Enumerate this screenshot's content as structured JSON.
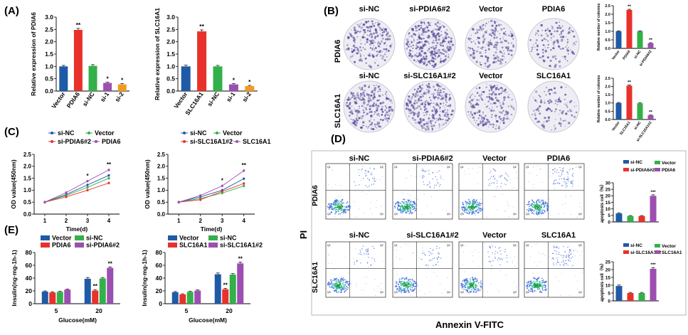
{
  "figure": {
    "panels": {
      "A": "(A)",
      "B": "(B)",
      "C": "(C)",
      "D": "(D)",
      "E": "(E)"
    },
    "colony_labels": {
      "top": [
        "si-NC",
        "si-PDIA6#2",
        "Vector",
        "PDIA6"
      ],
      "bottom": [
        "si-NC",
        "si-SLC16A1#2",
        "Vector",
        "SLC16A1"
      ],
      "row_top": "PDIA6",
      "row_bottom": "SLC16A1"
    },
    "flow_labels": {
      "top": [
        "si-NC",
        "si-PDIA6#2",
        "Vector",
        "PDIA6"
      ],
      "bottom": [
        "si-NC",
        "si-SLC16A1#2",
        "Vector",
        "SLC16A1"
      ],
      "row_top": "PDIA6",
      "row_bottom": "SLC16A1",
      "y_axis": "PI",
      "x_axis": "Annexin V-FITC",
      "quadrants": [
        "Q1",
        "Q2",
        "Q3",
        "Q4"
      ]
    }
  },
  "colors": {
    "blue": "#1f5aa6",
    "red": "#e8312a",
    "green": "#33b04a",
    "purple": "#9b4fb0",
    "orange": "#f39a1e",
    "plate_ink": "#5a4f9e"
  },
  "chart_data": [
    {
      "id": "A1",
      "type": "bar",
      "ylabel": "Relative expression of PDIA6",
      "categories": [
        "Vector",
        "PDIA6",
        "si-NC",
        "si-1",
        "si-2"
      ],
      "values": [
        1.0,
        2.48,
        1.02,
        0.33,
        0.27
      ],
      "errors": [
        0.04,
        0.06,
        0.05,
        0.03,
        0.03
      ],
      "colors": [
        "blue",
        "red",
        "green",
        "purple",
        "orange"
      ],
      "sig": [
        "",
        "**",
        "",
        "*",
        "*"
      ],
      "ylim": [
        0,
        3.0
      ],
      "yticks": [
        "0.0",
        "0.5",
        "1.0",
        "1.5",
        "2.0",
        "2.5",
        "3.0"
      ]
    },
    {
      "id": "A2",
      "type": "bar",
      "ylabel": "Relative expression of SLC16A1",
      "categories": [
        "Vector",
        "SLC16A1",
        "si-NC",
        "si-1",
        "si-2"
      ],
      "values": [
        1.0,
        2.42,
        1.0,
        0.27,
        0.2
      ],
      "errors": [
        0.05,
        0.06,
        0.04,
        0.03,
        0.03
      ],
      "colors": [
        "blue",
        "red",
        "green",
        "purple",
        "orange"
      ],
      "sig": [
        "",
        "**",
        "",
        "*",
        "*"
      ],
      "ylim": [
        0,
        3.0
      ],
      "yticks": [
        "0.0",
        "0.5",
        "1.0",
        "1.5",
        "2.0",
        "2.5",
        "3.0"
      ]
    },
    {
      "id": "B1",
      "type": "bar",
      "ylabel": "Relative number of colonies",
      "categories": [
        "Vector",
        "PDIA6",
        "si-NC",
        "si-PDIA6#2"
      ],
      "values": [
        1.0,
        2.25,
        1.0,
        0.3
      ],
      "errors": [
        0.03,
        0.04,
        0.03,
        0.03
      ],
      "colors": [
        "blue",
        "red",
        "green",
        "purple"
      ],
      "sig": [
        "",
        "**",
        "",
        "**"
      ],
      "ylim": [
        0,
        2.5
      ],
      "yticks": [
        "0.0",
        "0.5",
        "1.0",
        "1.5",
        "2.0",
        "2.5"
      ]
    },
    {
      "id": "B2",
      "type": "bar",
      "ylabel": "Relative number of colonies",
      "categories": [
        "Vector",
        "SLC16A1",
        "si-NC",
        "si-SLC16A1#2"
      ],
      "values": [
        1.0,
        2.05,
        0.98,
        0.25
      ],
      "errors": [
        0.03,
        0.04,
        0.03,
        0.02
      ],
      "colors": [
        "blue",
        "red",
        "green",
        "purple"
      ],
      "sig": [
        "",
        "**",
        "",
        "**"
      ],
      "ylim": [
        0,
        2.5
      ],
      "yticks": [
        "0.0",
        "0.5",
        "1.0",
        "1.5",
        "2.0",
        "2.5"
      ]
    },
    {
      "id": "C1",
      "type": "line",
      "xlabel": "Time(d)",
      "ylabel": "OD value(450nm)",
      "x": [
        1,
        2,
        3,
        4
      ],
      "series": [
        {
          "name": "si-NC",
          "color": "blue",
          "values": [
            0.5,
            0.82,
            1.22,
            1.62
          ]
        },
        {
          "name": "Vector",
          "color": "green",
          "values": [
            0.5,
            0.78,
            1.12,
            1.5
          ]
        },
        {
          "name": "si-PDIA6#2",
          "color": "red",
          "values": [
            0.5,
            0.72,
            1.0,
            1.3
          ]
        },
        {
          "name": "PDIA6",
          "color": "purple",
          "values": [
            0.5,
            0.9,
            1.38,
            1.85
          ]
        }
      ],
      "sig": [
        "",
        "",
        "*",
        "**"
      ],
      "ylim": [
        0,
        2.5
      ],
      "yticks": [
        "0.0",
        "0.5",
        "1.0",
        "1.5",
        "2.0",
        "2.5"
      ],
      "xticks": [
        "1",
        "2",
        "3",
        "4"
      ]
    },
    {
      "id": "C2",
      "type": "line",
      "xlabel": "Time(d)",
      "ylabel": "OD value(450nm)",
      "x": [
        1,
        2,
        3,
        4
      ],
      "series": [
        {
          "name": "si-NC",
          "color": "blue",
          "values": [
            0.5,
            0.72,
            1.0,
            1.48
          ]
        },
        {
          "name": "Vector",
          "color": "green",
          "values": [
            0.5,
            0.65,
            0.88,
            1.18
          ]
        },
        {
          "name": "si-SLC16A1#2",
          "color": "red",
          "values": [
            0.5,
            0.6,
            0.95,
            1.28
          ]
        },
        {
          "name": "SLC16A1",
          "color": "purple",
          "values": [
            0.5,
            0.78,
            1.18,
            1.82
          ]
        }
      ],
      "sig": [
        "",
        "",
        "*",
        "**"
      ],
      "ylim": [
        0,
        2.5
      ],
      "yticks": [
        "0.0",
        "0.5",
        "1.0",
        "1.5",
        "2.0",
        "2.5"
      ],
      "xticks": [
        "1",
        "2",
        "3",
        "4"
      ]
    },
    {
      "id": "D1",
      "type": "bar",
      "ylabel": "apoptosis cell（%）",
      "categories": [
        "si-NC",
        "Vector",
        "si-PDIA6#2",
        "PDIA6"
      ],
      "values": [
        6.5,
        4.5,
        4.5,
        20.0
      ],
      "errors": [
        0.5,
        0.4,
        0.4,
        0.8
      ],
      "colors": [
        "blue",
        "green",
        "red",
        "purple"
      ],
      "sig": [
        "",
        "",
        "",
        "***"
      ],
      "ylim": [
        0,
        30
      ],
      "yticks": [
        "0",
        "5",
        "10",
        "15",
        "20",
        "25",
        "30"
      ]
    },
    {
      "id": "D2",
      "type": "bar",
      "ylabel": "apoptosis cell（%）",
      "categories": [
        "si-NC",
        "si-SLC16A1#2",
        "Vector",
        "SLC16A1"
      ],
      "values": [
        9.5,
        5.0,
        5.0,
        20.5
      ],
      "errors": [
        0.6,
        0.4,
        0.4,
        0.8
      ],
      "colors": [
        "blue",
        "red",
        "green",
        "purple"
      ],
      "sig": [
        "",
        "",
        "",
        "***"
      ],
      "ylim": [
        0,
        25
      ],
      "yticks": [
        "0",
        "5",
        "10",
        "15",
        "20",
        "25"
      ]
    },
    {
      "id": "E1",
      "type": "bar",
      "xlabel": "Glucose(mM)",
      "ylabel": "Insulin(ng·mg-1h-1)",
      "categories": [
        "5",
        "20"
      ],
      "series": [
        {
          "name": "Vector",
          "color": "blue",
          "values": [
            19,
            39
          ],
          "errors": [
            1.0,
            2.0
          ]
        },
        {
          "name": "PDIA6",
          "color": "red",
          "values": [
            17.5,
            20.5
          ],
          "errors": [
            1.0,
            1.5
          ]
        },
        {
          "name": "si-NC",
          "color": "green",
          "values": [
            18.5,
            39.5
          ],
          "errors": [
            1.0,
            1.5
          ]
        },
        {
          "name": "si-PDIA6#2",
          "color": "purple",
          "values": [
            22,
            56
          ],
          "errors": [
            1.0,
            1.5
          ]
        }
      ],
      "sig": [
        [
          "",
          "",
          "",
          ""
        ],
        [
          "",
          "**",
          "",
          "**"
        ]
      ],
      "ylim": [
        0,
        80
      ],
      "yticks": [
        "0",
        "20",
        "40",
        "60",
        "80"
      ]
    },
    {
      "id": "E2",
      "type": "bar",
      "xlabel": "Glucose(mM)",
      "ylabel": "Insulin(ng·mg-1h-1)",
      "categories": [
        "5",
        "20"
      ],
      "series": [
        {
          "name": "Vector",
          "color": "blue",
          "values": [
            18,
            46
          ],
          "errors": [
            1.0,
            2.0
          ]
        },
        {
          "name": "SLC16A1",
          "color": "red",
          "values": [
            14.5,
            22.5
          ],
          "errors": [
            1.0,
            1.5
          ]
        },
        {
          "name": "si-NC",
          "color": "green",
          "values": [
            18.5,
            45.5
          ],
          "errors": [
            1.0,
            1.5
          ]
        },
        {
          "name": "si-SLC16A1#2",
          "color": "purple",
          "values": [
            20.5,
            63
          ],
          "errors": [
            1.0,
            2.0
          ]
        }
      ],
      "sig": [
        [
          "",
          "",
          "",
          ""
        ],
        [
          "",
          "**",
          "",
          "**"
        ]
      ],
      "ylim": [
        0,
        80
      ],
      "yticks": [
        "0",
        "20",
        "40",
        "60",
        "80"
      ]
    }
  ]
}
